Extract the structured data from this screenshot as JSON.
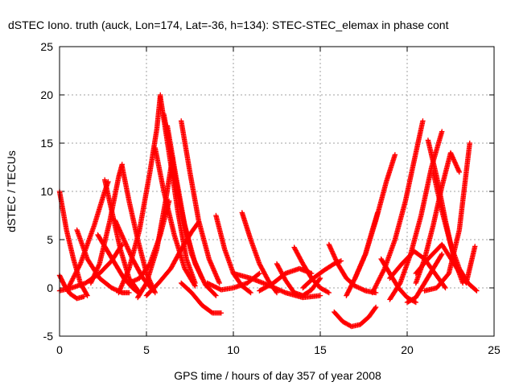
{
  "chart_data": {
    "type": "scatter",
    "title": "dSTEC Iono. truth (auck, Lon=174, Lat=-36, h=134): STEC-STEC_elemax in phase cont",
    "xlabel": "GPS time / hours of day 357 of year 2008",
    "ylabel": "dSTEC  / TECUs",
    "xlim": [
      0,
      25
    ],
    "ylim": [
      -5,
      25
    ],
    "xticks": [
      0,
      5,
      10,
      15,
      20,
      25
    ],
    "yticks": [
      -5,
      0,
      5,
      10,
      15,
      20,
      25
    ],
    "grid": true,
    "marker": "+",
    "color": "#ff0000",
    "series": [
      {
        "x": [
          0.0,
          0.4,
          0.8,
          1.2,
          1.6
        ],
        "y": [
          10.0,
          6.0,
          3.0,
          0.5,
          -0.8
        ]
      },
      {
        "x": [
          0.0,
          0.3,
          0.6,
          1.0,
          1.4
        ],
        "y": [
          1.3,
          0.2,
          -0.6,
          -1.1,
          -0.9
        ]
      },
      {
        "x": [
          0.0,
          0.7,
          1.5,
          2.3,
          3.0,
          3.6
        ],
        "y": [
          -0.3,
          0.0,
          0.5,
          1.5,
          2.8,
          4.5
        ]
      },
      {
        "x": [
          1.0,
          1.6,
          2.3,
          3.0,
          3.6,
          4.0
        ],
        "y": [
          6.0,
          3.0,
          1.0,
          0.0,
          -0.5,
          -0.5
        ]
      },
      {
        "x": [
          0.5,
          1.2,
          2.0,
          2.6,
          2.8
        ],
        "y": [
          0.0,
          2.5,
          6.5,
          10.0,
          11.0
        ]
      },
      {
        "x": [
          2.6,
          3.0,
          3.5,
          4.0,
          4.6
        ],
        "y": [
          11.2,
          8.0,
          4.0,
          1.0,
          -0.5
        ]
      },
      {
        "x": [
          2.2,
          2.7,
          3.2,
          3.7,
          4.2,
          4.6
        ],
        "y": [
          5.5,
          4.0,
          2.5,
          1.0,
          0.0,
          -0.6
        ]
      },
      {
        "x": [
          1.8,
          2.3,
          2.9,
          3.4,
          3.6
        ],
        "y": [
          0.5,
          2.5,
          7.0,
          11.5,
          12.8
        ]
      },
      {
        "x": [
          3.6,
          4.0,
          4.5,
          5.0,
          5.5
        ],
        "y": [
          12.6,
          9.0,
          5.0,
          1.5,
          -0.5
        ]
      },
      {
        "x": [
          3.2,
          3.7,
          4.2,
          4.8,
          5.4
        ],
        "y": [
          7.0,
          5.0,
          3.0,
          1.0,
          -0.3
        ]
      },
      {
        "x": [
          3.4,
          4.0,
          4.6,
          5.2,
          5.6,
          5.8
        ],
        "y": [
          -0.5,
          2.0,
          6.0,
          12.0,
          16.5,
          20.0
        ]
      },
      {
        "x": [
          5.8,
          6.3,
          6.8,
          7.3,
          7.8
        ],
        "y": [
          19.8,
          14.0,
          8.0,
          3.0,
          0.5
        ]
      },
      {
        "x": [
          6.0,
          6.5,
          7.0,
          7.6,
          8.2
        ],
        "y": [
          18.0,
          13.0,
          8.0,
          3.5,
          1.0
        ]
      },
      {
        "x": [
          6.2,
          6.7,
          7.2,
          7.8,
          8.4,
          9.0
        ],
        "y": [
          16.8,
          11.5,
          6.5,
          2.5,
          0.3,
          -0.8
        ]
      },
      {
        "x": [
          5.5,
          6.0,
          6.6,
          7.2,
          7.8
        ],
        "y": [
          14.5,
          10.0,
          5.5,
          2.0,
          0.2
        ]
      },
      {
        "x": [
          7.0,
          7.5,
          8.0,
          8.6,
          9.2
        ],
        "y": [
          17.3,
          12.0,
          7.0,
          3.0,
          0.5
        ]
      },
      {
        "x": [
          4.5,
          5.0,
          5.6,
          6.1,
          6.5
        ],
        "y": [
          -1.0,
          0.5,
          4.0,
          9.0,
          13.5
        ]
      },
      {
        "x": [
          4.0,
          4.6,
          5.2,
          5.8,
          6.3
        ],
        "y": [
          0.5,
          1.0,
          2.5,
          5.5,
          9.0
        ]
      },
      {
        "x": [
          5.0,
          5.7,
          6.4,
          7.0,
          7.6,
          8.0
        ],
        "y": [
          -0.8,
          0.5,
          2.0,
          4.0,
          5.8,
          6.8
        ]
      },
      {
        "x": [
          7.0,
          7.6,
          8.2,
          8.8,
          9.3
        ],
        "y": [
          0.5,
          -0.5,
          -1.8,
          -2.6,
          -2.6
        ]
      },
      {
        "x": [
          9.0,
          9.5,
          10.0,
          10.5,
          11.0
        ],
        "y": [
          7.5,
          4.0,
          1.5,
          0.2,
          -0.5
        ]
      },
      {
        "x": [
          10.5,
          11.0,
          11.5,
          12.0,
          12.5
        ],
        "y": [
          7.8,
          5.0,
          2.5,
          0.8,
          -0.5
        ]
      },
      {
        "x": [
          8.5,
          9.3,
          10.0,
          10.8,
          11.5
        ],
        "y": [
          0.5,
          -0.2,
          0.0,
          0.5,
          1.5
        ]
      },
      {
        "x": [
          10.0,
          11.0,
          12.0,
          13.0,
          14.0,
          15.0
        ],
        "y": [
          1.5,
          1.0,
          0.3,
          -0.5,
          -1.0,
          -0.8
        ]
      },
      {
        "x": [
          12.5,
          13.0,
          13.5,
          14.0,
          14.5,
          15.0
        ],
        "y": [
          2.5,
          0.8,
          -0.5,
          -0.8,
          -0.2,
          1.0
        ]
      },
      {
        "x": [
          13.5,
          14.0,
          14.5,
          15.0,
          15.5
        ],
        "y": [
          4.2,
          2.5,
          1.0,
          0.0,
          -0.5
        ]
      },
      {
        "x": [
          11.5,
          12.3,
          13.0,
          13.8,
          14.5
        ],
        "y": [
          -0.3,
          0.5,
          1.5,
          2.0,
          1.5
        ]
      },
      {
        "x": [
          14.0,
          14.6,
          15.2,
          15.8,
          16.2
        ],
        "y": [
          0.0,
          1.0,
          1.8,
          2.5,
          2.8
        ]
      },
      {
        "x": [
          15.5,
          16.0,
          16.5,
          17.0,
          17.6,
          18.2
        ],
        "y": [
          4.5,
          2.5,
          1.0,
          0.2,
          -0.3,
          -0.5
        ]
      },
      {
        "x": [
          15.8,
          16.3,
          16.8,
          17.3,
          17.8,
          18.2
        ],
        "y": [
          -2.5,
          -3.5,
          -4.0,
          -3.8,
          -3.0,
          -2.0
        ]
      },
      {
        "x": [
          16.5,
          17.0,
          17.6,
          18.2,
          18.8,
          19.3
        ],
        "y": [
          -0.8,
          1.0,
          3.5,
          7.0,
          11.0,
          13.8
        ]
      },
      {
        "x": [
          17.0,
          17.6,
          18.0,
          18.3
        ],
        "y": [
          1.0,
          3.5,
          6.0,
          7.8
        ]
      },
      {
        "x": [
          18.0,
          18.7,
          19.3,
          19.9,
          20.5,
          20.9
        ],
        "y": [
          -0.5,
          2.0,
          5.0,
          9.0,
          14.0,
          17.3
        ]
      },
      {
        "x": [
          18.5,
          19.0,
          19.5,
          20.0,
          20.5
        ],
        "y": [
          3.0,
          1.5,
          0.0,
          -1.0,
          -1.5
        ]
      },
      {
        "x": [
          19.0,
          19.6,
          20.2,
          20.8,
          21.4,
          22.0
        ],
        "y": [
          -1.2,
          0.5,
          3.5,
          7.5,
          12.5,
          16.2
        ]
      },
      {
        "x": [
          20.0,
          20.5,
          21.0,
          21.5,
          22.0
        ],
        "y": [
          -1.5,
          -1.0,
          0.5,
          2.0,
          3.5
        ]
      },
      {
        "x": [
          20.5,
          21.0,
          21.5,
          22.0,
          22.5,
          23.0
        ],
        "y": [
          0.5,
          3.0,
          6.5,
          10.5,
          14.0,
          12.0
        ]
      },
      {
        "x": [
          21.2,
          21.7,
          22.2,
          22.7,
          23.2
        ],
        "y": [
          15.3,
          11.5,
          7.0,
          3.0,
          0.5
        ]
      },
      {
        "x": [
          21.5,
          22.0,
          22.5,
          23.0,
          23.5,
          24.0
        ],
        "y": [
          12.0,
          8.0,
          4.5,
          2.0,
          0.5,
          -0.3
        ]
      },
      {
        "x": [
          21.0,
          21.7,
          22.4,
          23.0,
          23.6
        ],
        "y": [
          -0.3,
          0.0,
          1.5,
          6.0,
          15.0
        ]
      },
      {
        "x": [
          20.5,
          21.2,
          22.0,
          22.7,
          23.4,
          23.9
        ],
        "y": [
          1.5,
          3.0,
          4.5,
          2.5,
          0.5,
          4.3
        ]
      },
      {
        "x": [
          19.0,
          19.7,
          20.4,
          21.0,
          21.6,
          22.2
        ],
        "y": [
          1.0,
          2.5,
          3.8,
          3.0,
          1.5,
          0.0
        ]
      }
    ]
  }
}
